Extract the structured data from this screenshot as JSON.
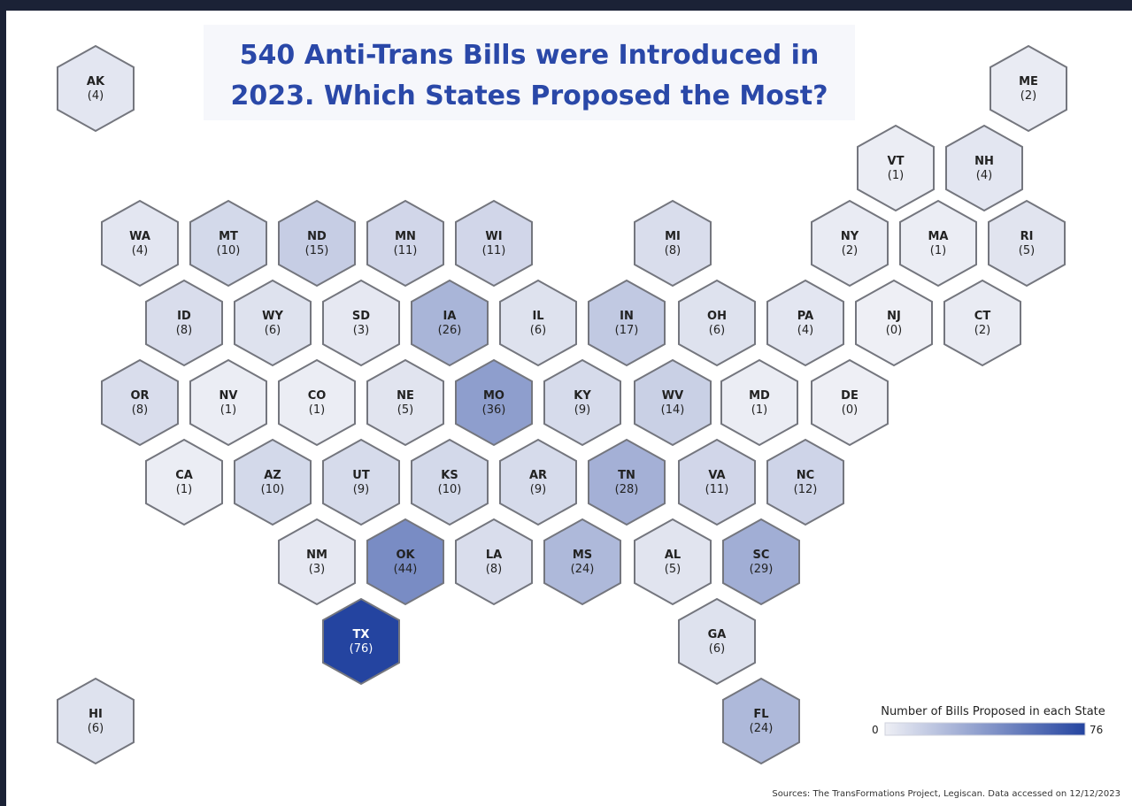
{
  "header": {
    "title_lines": [
      "540 Anti-Trans Bills were Introduced in",
      "2023. Which States Proposed the Most?"
    ]
  },
  "states": [
    {
      "abbr": "AK",
      "value": 4,
      "value_label": "(4)"
    },
    {
      "abbr": "ME",
      "value": 2,
      "value_label": "(2)"
    },
    {
      "abbr": "VT",
      "value": 1,
      "value_label": "(1)"
    },
    {
      "abbr": "NH",
      "value": 4,
      "value_label": "(4)"
    },
    {
      "abbr": "WA",
      "value": 4,
      "value_label": "(4)"
    },
    {
      "abbr": "MT",
      "value": 10,
      "value_label": "(10)"
    },
    {
      "abbr": "ND",
      "value": 15,
      "value_label": "(15)"
    },
    {
      "abbr": "MN",
      "value": 11,
      "value_label": "(11)"
    },
    {
      "abbr": "WI",
      "value": 11,
      "value_label": "(11)"
    },
    {
      "abbr": "MI",
      "value": 8,
      "value_label": "(8)"
    },
    {
      "abbr": "NY",
      "value": 2,
      "value_label": "(2)"
    },
    {
      "abbr": "MA",
      "value": 1,
      "value_label": "(1)"
    },
    {
      "abbr": "RI",
      "value": 5,
      "value_label": "(5)"
    },
    {
      "abbr": "ID",
      "value": 8,
      "value_label": "(8)"
    },
    {
      "abbr": "WY",
      "value": 6,
      "value_label": "(6)"
    },
    {
      "abbr": "SD",
      "value": 3,
      "value_label": "(3)"
    },
    {
      "abbr": "IA",
      "value": 26,
      "value_label": "(26)"
    },
    {
      "abbr": "IL",
      "value": 6,
      "value_label": "(6)"
    },
    {
      "abbr": "IN",
      "value": 17,
      "value_label": "(17)"
    },
    {
      "abbr": "OH",
      "value": 6,
      "value_label": "(6)"
    },
    {
      "abbr": "PA",
      "value": 4,
      "value_label": "(4)"
    },
    {
      "abbr": "NJ",
      "value": 0,
      "value_label": "(0)"
    },
    {
      "abbr": "CT",
      "value": 2,
      "value_label": "(2)"
    },
    {
      "abbr": "OR",
      "value": 8,
      "value_label": "(8)"
    },
    {
      "abbr": "NV",
      "value": 1,
      "value_label": "(1)"
    },
    {
      "abbr": "CO",
      "value": 1,
      "value_label": "(1)"
    },
    {
      "abbr": "NE",
      "value": 5,
      "value_label": "(5)"
    },
    {
      "abbr": "MO",
      "value": 36,
      "value_label": "(36)"
    },
    {
      "abbr": "KY",
      "value": 9,
      "value_label": "(9)"
    },
    {
      "abbr": "WV",
      "value": 14,
      "value_label": "(14)"
    },
    {
      "abbr": "MD",
      "value": 1,
      "value_label": "(1)"
    },
    {
      "abbr": "DE",
      "value": 0,
      "value_label": "(0)"
    },
    {
      "abbr": "CA",
      "value": 1,
      "value_label": "(1)"
    },
    {
      "abbr": "AZ",
      "value": 10,
      "value_label": "(10)"
    },
    {
      "abbr": "UT",
      "value": 9,
      "value_label": "(9)"
    },
    {
      "abbr": "KS",
      "value": 10,
      "value_label": "(10)"
    },
    {
      "abbr": "AR",
      "value": 9,
      "value_label": "(9)"
    },
    {
      "abbr": "TN",
      "value": 28,
      "value_label": "(28)"
    },
    {
      "abbr": "VA",
      "value": 11,
      "value_label": "(11)"
    },
    {
      "abbr": "NC",
      "value": 12,
      "value_label": "(12)"
    },
    {
      "abbr": "NM",
      "value": 3,
      "value_label": "(3)"
    },
    {
      "abbr": "OK",
      "value": 44,
      "value_label": "(44)"
    },
    {
      "abbr": "LA",
      "value": 8,
      "value_label": "(8)"
    },
    {
      "abbr": "MS",
      "value": 24,
      "value_label": "(24)"
    },
    {
      "abbr": "AL",
      "value": 5,
      "value_label": "(5)"
    },
    {
      "abbr": "SC",
      "value": 29,
      "value_label": "(29)"
    },
    {
      "abbr": "TX",
      "value": 76,
      "value_label": "(76)"
    },
    {
      "abbr": "GA",
      "value": 6,
      "value_label": "(6)"
    },
    {
      "abbr": "HI",
      "value": 6,
      "value_label": "(6)"
    },
    {
      "abbr": "FL",
      "value": 24,
      "value_label": "(24)"
    }
  ],
  "legend": {
    "title": "Number of Bills Proposed in each State",
    "min": 0,
    "max": 76,
    "low_color": "#eeeff5",
    "high_color": "#2444a0"
  },
  "footer": {
    "source": "Sources: The TransFormations Project, Legiscan.  Data accessed on 12/12/2023"
  }
}
